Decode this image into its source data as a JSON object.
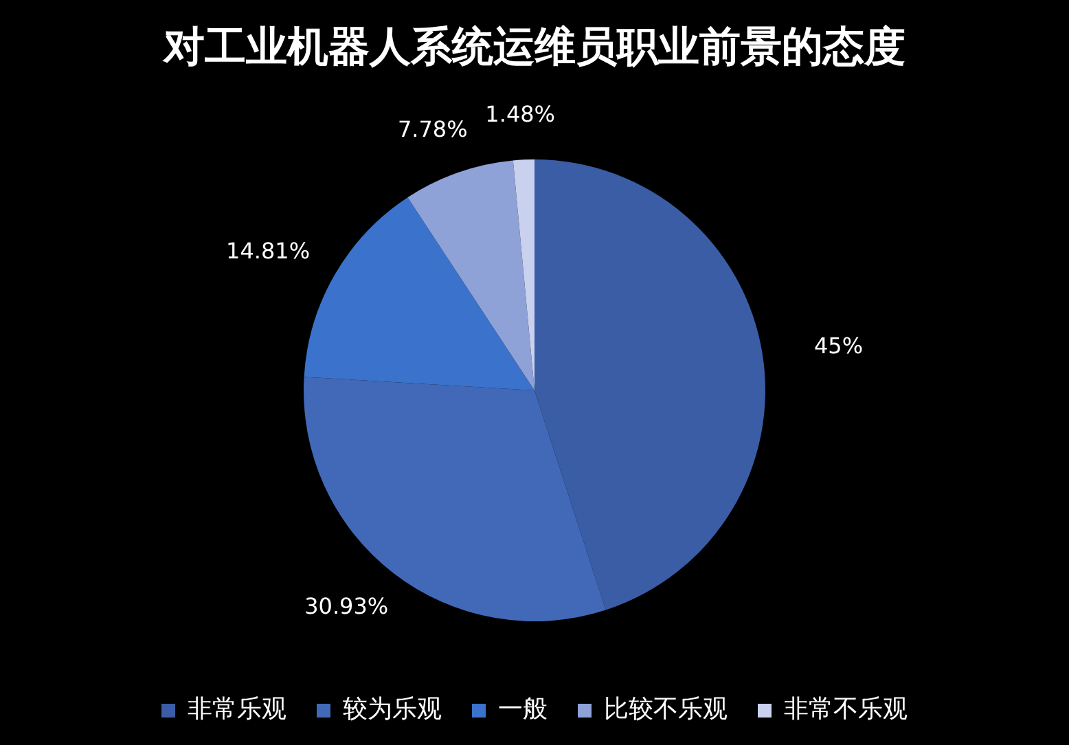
{
  "chart_data": {
    "type": "pie",
    "title": "对工业机器人系统运维员职业前景的态度",
    "categories": [
      "非常乐观",
      "较为乐观",
      "一般",
      "比较不乐观",
      "非常不乐观"
    ],
    "values": [
      45,
      30.93,
      14.81,
      7.78,
      1.48
    ],
    "value_labels": [
      "45%",
      "30.93%",
      "14.81%",
      "7.78%",
      "1.48%"
    ],
    "colors": [
      "#3a5da6",
      "#4169b8",
      "#3b72cc",
      "#8ea2d8",
      "#c9d1ee"
    ],
    "legend": "bottom"
  }
}
